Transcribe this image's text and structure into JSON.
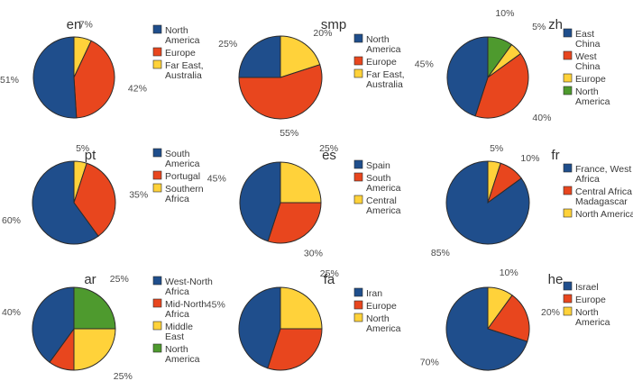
{
  "colors": {
    "blue": "#1F4E8C",
    "red": "#E8461E",
    "yellow": "#FFD23A",
    "green": "#4E9A2E"
  },
  "chart_data": [
    {
      "type": "pie",
      "title": "en",
      "series": [
        {
          "name": "North America",
          "value": 51,
          "label": "51%",
          "color": "blue"
        },
        {
          "name": "Europe",
          "value": 42,
          "label": "42%",
          "color": "red"
        },
        {
          "name": "Far East, Australia",
          "value": 7,
          "label": "7%",
          "color": "yellow"
        }
      ],
      "legend": [
        {
          "lines": [
            "North",
            "America"
          ],
          "color": "blue"
        },
        {
          "lines": [
            "Europe"
          ],
          "color": "red"
        },
        {
          "lines": [
            "Far East,",
            "Australia"
          ],
          "color": "yellow"
        }
      ]
    },
    {
      "type": "pie",
      "title": "smp",
      "series": [
        {
          "name": "North America",
          "value": 25,
          "label": "25%",
          "color": "blue"
        },
        {
          "name": "Europe",
          "value": 55,
          "label": "55%",
          "color": "red"
        },
        {
          "name": "Far East, Australia",
          "value": 20,
          "label": "20%",
          "color": "yellow"
        }
      ],
      "legend": [
        {
          "lines": [
            "North",
            "America"
          ],
          "color": "blue"
        },
        {
          "lines": [
            "Europe"
          ],
          "color": "red"
        },
        {
          "lines": [
            "Far East,",
            "Australia"
          ],
          "color": "yellow"
        }
      ]
    },
    {
      "type": "pie",
      "title": "zh",
      "series": [
        {
          "name": "East China",
          "value": 45,
          "label": "45%",
          "color": "blue"
        },
        {
          "name": "West China",
          "value": 40,
          "label": "40%",
          "color": "red"
        },
        {
          "name": "Europe",
          "value": 5,
          "label": "5%",
          "color": "yellow"
        },
        {
          "name": "North America",
          "value": 10,
          "label": "10%",
          "color": "green"
        }
      ],
      "legend": [
        {
          "lines": [
            "East",
            "China"
          ],
          "color": "blue"
        },
        {
          "lines": [
            "West",
            "China"
          ],
          "color": "red"
        },
        {
          "lines": [
            "Europe"
          ],
          "color": "yellow"
        },
        {
          "lines": [
            "North",
            "America"
          ],
          "color": "green"
        }
      ]
    },
    {
      "type": "pie",
      "title": "pt",
      "series": [
        {
          "name": "South America",
          "value": 60,
          "label": "60%",
          "color": "blue"
        },
        {
          "name": "Portugal",
          "value": 35,
          "label": "35%",
          "color": "red"
        },
        {
          "name": "Southern Africa",
          "value": 5,
          "label": "5%",
          "color": "yellow"
        }
      ],
      "legend": [
        {
          "lines": [
            "South",
            "America"
          ],
          "color": "blue"
        },
        {
          "lines": [
            "Portugal"
          ],
          "color": "red"
        },
        {
          "lines": [
            "Southern",
            "Africa"
          ],
          "color": "yellow"
        }
      ]
    },
    {
      "type": "pie",
      "title": "es",
      "series": [
        {
          "name": "Spain",
          "value": 45,
          "label": "45%",
          "color": "blue"
        },
        {
          "name": "South America",
          "value": 30,
          "label": "30%",
          "color": "red"
        },
        {
          "name": "Central America",
          "value": 25,
          "label": "25%",
          "color": "yellow"
        }
      ],
      "legend": [
        {
          "lines": [
            "Spain"
          ],
          "color": "blue"
        },
        {
          "lines": [
            "South",
            "America"
          ],
          "color": "red"
        },
        {
          "lines": [
            "Central",
            "America"
          ],
          "color": "yellow"
        }
      ]
    },
    {
      "type": "pie",
      "title": "fr",
      "series": [
        {
          "name": "France, West Africa",
          "value": 85,
          "label": "85%",
          "color": "blue"
        },
        {
          "name": "Central Africa, Madagascar",
          "value": 10,
          "label": "10%",
          "color": "red"
        },
        {
          "name": "North America",
          "value": 5,
          "label": "5%",
          "color": "yellow"
        }
      ],
      "legend": [
        {
          "lines": [
            "France, West",
            "Africa"
          ],
          "color": "blue"
        },
        {
          "lines": [
            "Central Africa",
            "Madagascar"
          ],
          "color": "red"
        },
        {
          "lines": [
            "North America"
          ],
          "color": "yellow"
        }
      ]
    },
    {
      "type": "pie",
      "title": "ar",
      "series": [
        {
          "name": "West-North Africa",
          "value": 40,
          "label": "40%",
          "color": "blue"
        },
        {
          "name": "Mid-North Africa",
          "value": 10,
          "label": "10%",
          "color": "red"
        },
        {
          "name": "Middle East",
          "value": 25,
          "label": "25%",
          "color": "yellow"
        },
        {
          "name": "North America",
          "value": 25,
          "label": "25%",
          "color": "green"
        }
      ],
      "legend": [
        {
          "lines": [
            "West-North",
            "Africa"
          ],
          "color": "blue"
        },
        {
          "lines": [
            "Mid-North",
            "Africa"
          ],
          "color": "red"
        },
        {
          "lines": [
            "Middle",
            "East"
          ],
          "color": "yellow"
        },
        {
          "lines": [
            "North",
            "America"
          ],
          "color": "green"
        }
      ]
    },
    {
      "type": "pie",
      "title": "fa",
      "series": [
        {
          "name": "Iran",
          "value": 45,
          "label": "45%",
          "color": "blue"
        },
        {
          "name": "Europe",
          "value": 30,
          "label": "30%",
          "color": "red"
        },
        {
          "name": "North America",
          "value": 25,
          "label": "25%",
          "color": "yellow"
        }
      ],
      "legend": [
        {
          "lines": [
            "Iran"
          ],
          "color": "blue"
        },
        {
          "lines": [
            "Europe"
          ],
          "color": "red"
        },
        {
          "lines": [
            "North",
            "America"
          ],
          "color": "yellow"
        }
      ]
    },
    {
      "type": "pie",
      "title": "he",
      "series": [
        {
          "name": "Israel",
          "value": 70,
          "label": "70%",
          "color": "blue"
        },
        {
          "name": "Europe",
          "value": 20,
          "label": "20%",
          "color": "red"
        },
        {
          "name": "North America",
          "value": 10,
          "label": "10%",
          "color": "yellow"
        }
      ],
      "legend": [
        {
          "lines": [
            "Israel"
          ],
          "color": "blue"
        },
        {
          "lines": [
            "Europe"
          ],
          "color": "red"
        },
        {
          "lines": [
            "North",
            "America"
          ],
          "color": "yellow"
        }
      ]
    }
  ]
}
